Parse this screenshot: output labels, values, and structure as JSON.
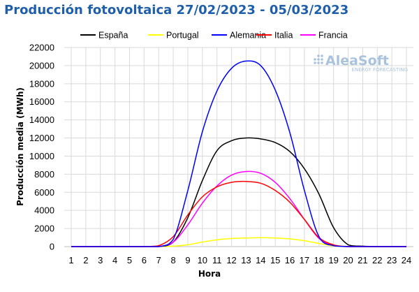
{
  "chart_data": {
    "type": "line",
    "title": "Producción fotovoltaica 27/02/2023 - 05/03/2023",
    "xlabel": "Hora",
    "ylabel": "Producción media (MWh)",
    "x": [
      1,
      2,
      3,
      4,
      5,
      6,
      7,
      8,
      9,
      10,
      11,
      12,
      13,
      14,
      15,
      16,
      17,
      18,
      19,
      20,
      21,
      22,
      23,
      24
    ],
    "xlim": [
      1,
      24
    ],
    "ylim": [
      0,
      22000
    ],
    "yticks": [
      0,
      2000,
      4000,
      6000,
      8000,
      10000,
      12000,
      14000,
      16000,
      18000,
      20000,
      22000
    ],
    "grid": true,
    "legend_position": "top",
    "series": [
      {
        "name": "España",
        "color": "#000000",
        "values": [
          0,
          0,
          0,
          0,
          0,
          0,
          0,
          500,
          3200,
          7300,
          10600,
          11700,
          12000,
          11900,
          11500,
          10500,
          8600,
          5800,
          2100,
          200,
          50,
          0,
          0,
          0
        ]
      },
      {
        "name": "Portugal",
        "color": "#ffff00",
        "values": [
          0,
          0,
          0,
          0,
          0,
          0,
          0,
          50,
          200,
          500,
          750,
          900,
          950,
          980,
          950,
          850,
          650,
          350,
          80,
          0,
          0,
          0,
          0,
          0
        ]
      },
      {
        "name": "Alemania",
        "color": "#0000ff",
        "values": [
          0,
          0,
          0,
          0,
          0,
          0,
          0,
          800,
          6200,
          12700,
          17200,
          19700,
          20500,
          20000,
          17300,
          12600,
          6200,
          1100,
          100,
          0,
          0,
          0,
          0,
          0
        ]
      },
      {
        "name": "Italia",
        "color": "#ff0000",
        "values": [
          0,
          0,
          0,
          0,
          0,
          0,
          100,
          1100,
          3500,
          5500,
          6600,
          7100,
          7200,
          7000,
          6200,
          4900,
          3000,
          1000,
          200,
          0,
          0,
          0,
          0,
          0
        ]
      },
      {
        "name": "Francia",
        "color": "#ff00ff",
        "values": [
          0,
          0,
          0,
          0,
          0,
          0,
          0,
          500,
          2400,
          4800,
          6700,
          7900,
          8300,
          8100,
          7100,
          5300,
          3000,
          900,
          100,
          0,
          0,
          0,
          0,
          0
        ]
      }
    ]
  },
  "watermark": {
    "brand": "AleaSoft",
    "tagline": "ENERGY FORECASTING"
  }
}
